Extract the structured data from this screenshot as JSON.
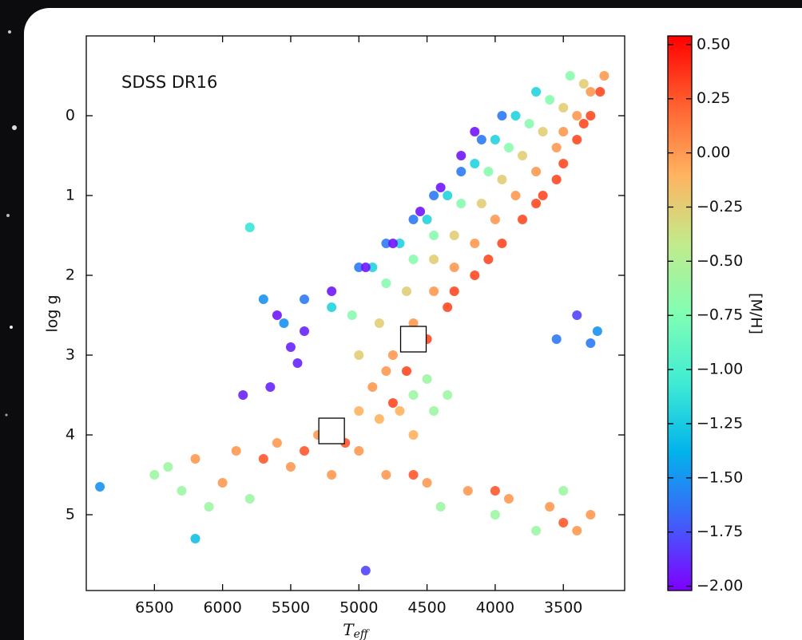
{
  "chart_data": {
    "type": "scatter",
    "annotation": "SDSS DR16",
    "xlabel": {
      "main": "T",
      "sub": "eff"
    },
    "ylabel": "log g",
    "colorbar_label": "[M/H]",
    "xlim": [
      7000,
      3050
    ],
    "ylim": [
      5.95,
      -1.0
    ],
    "xticks": [
      6500,
      6000,
      5500,
      5000,
      4500,
      4000,
      3500
    ],
    "yticks": [
      0,
      1,
      2,
      3,
      4,
      5
    ],
    "clim": [
      -2.02,
      0.54
    ],
    "cticks": [
      {
        "value": 0.5,
        "label": "0.50"
      },
      {
        "value": 0.25,
        "label": "0.25"
      },
      {
        "value": 0.0,
        "label": "0.00"
      },
      {
        "value": -0.25,
        "label": "−0.25"
      },
      {
        "value": -0.5,
        "label": "−0.50"
      },
      {
        "value": -0.75,
        "label": "−0.75"
      },
      {
        "value": -1.0,
        "label": "−1.00"
      },
      {
        "value": -1.25,
        "label": "−1.25"
      },
      {
        "value": -1.5,
        "label": "−1.50"
      },
      {
        "value": -1.75,
        "label": "−1.75"
      },
      {
        "value": -2.0,
        "label": "−2.00"
      }
    ],
    "colormap": [
      "#7f00ff",
      "#3f61fa",
      "#01b3eb",
      "#40ecd4",
      "#81feb4",
      "#c2eb8c",
      "#ffb360",
      "#ff6130",
      "#ff0000"
    ],
    "series": [
      {
        "x": [
          4750,
          4650,
          4500,
          4350,
          4150,
          3950,
          3800,
          3650,
          3500,
          3400,
          3300,
          3230,
          4300,
          4050,
          3700,
          3550,
          3350,
          4900,
          4750,
          4600,
          4450,
          4300,
          4150,
          4000,
          3850,
          3700,
          3550,
          3400,
          3300,
          3200,
          3500,
          4800,
          5000,
          4850,
          4650,
          4450,
          4300,
          4100,
          3950,
          3800,
          3650,
          3500,
          3350,
          5050,
          4800,
          4600,
          4450,
          4250,
          4050,
          3900,
          3750,
          3600,
          3450,
          5200,
          4900,
          4700,
          4500,
          4350,
          4150,
          4000,
          3850,
          3700,
          5400,
          5000,
          4800,
          4600,
          4450,
          4250,
          4100,
          3950,
          5600,
          5200,
          4950,
          4750,
          4550,
          4400,
          4250,
          4150,
          5500,
          5450,
          5850,
          5650,
          5400,
          5700,
          5550,
          6200,
          5900,
          5600,
          5300,
          5000,
          5500,
          6000,
          5200,
          4800,
          4500,
          4200,
          3900,
          3600,
          3400,
          3300,
          5400,
          5100,
          5700,
          4600,
          4000,
          3500,
          6300,
          6100,
          5800,
          4400,
          4000,
          3700,
          3500,
          6400,
          6500,
          4850,
          4700,
          4600,
          5000,
          4500,
          4450,
          4350,
          4600,
          6900,
          5800,
          3400,
          3300,
          3250,
          3550,
          6200,
          4950
        ],
        "values": [
          3.6,
          3.2,
          2.8,
          2.4,
          2.0,
          1.6,
          1.3,
          1.0,
          0.6,
          0.3,
          0.0,
          -0.3,
          2.2,
          1.8,
          1.1,
          0.8,
          0.1,
          3.4,
          3.0,
          2.6,
          2.2,
          1.9,
          1.6,
          1.3,
          1.0,
          0.7,
          0.4,
          0.0,
          -0.3,
          -0.5,
          0.2,
          3.2,
          3.0,
          2.6,
          2.2,
          1.8,
          1.5,
          1.1,
          0.8,
          0.5,
          0.2,
          -0.1,
          -0.4,
          2.5,
          2.1,
          1.8,
          1.5,
          1.1,
          0.7,
          0.4,
          0.1,
          -0.2,
          -0.5,
          2.4,
          1.9,
          1.6,
          1.3,
          1.0,
          0.6,
          0.3,
          0.0,
          -0.3,
          2.3,
          1.9,
          1.6,
          1.3,
          1.0,
          0.7,
          0.3,
          0.0,
          2.5,
          2.2,
          1.9,
          1.6,
          1.2,
          0.9,
          0.5,
          0.2,
          2.9,
          3.1,
          3.5,
          3.4,
          2.7,
          2.3,
          2.6,
          4.3,
          4.2,
          4.1,
          4.0,
          4.2,
          4.4,
          4.6,
          4.5,
          4.5,
          4.6,
          4.7,
          4.8,
          4.9,
          5.2,
          5.0,
          4.2,
          4.1,
          4.3,
          4.5,
          4.7,
          5.1,
          4.7,
          4.9,
          4.8,
          4.9,
          5.0,
          5.2,
          4.7,
          4.4,
          4.5,
          3.8,
          3.7,
          4.0,
          3.7,
          3.3,
          3.7,
          3.5,
          3.5,
          4.65,
          1.4,
          2.5,
          2.85,
          2.7,
          2.8,
          5.3,
          5.7
        ],
        "color_values": [
          0.3,
          0.3,
          0.3,
          0.3,
          0.3,
          0.3,
          0.3,
          0.3,
          0.3,
          0.3,
          0.3,
          0.3,
          0.3,
          0.3,
          0.3,
          0.3,
          0.3,
          0.0,
          0.0,
          0.0,
          0.0,
          0.0,
          0.0,
          0.0,
          0.0,
          0.0,
          0.0,
          0.0,
          0.0,
          0.0,
          0.0,
          0.0,
          -0.25,
          -0.25,
          -0.25,
          -0.25,
          -0.25,
          -0.25,
          -0.25,
          -0.25,
          -0.25,
          -0.25,
          -0.25,
          -0.7,
          -0.7,
          -0.7,
          -0.7,
          -0.7,
          -0.7,
          -0.7,
          -0.7,
          -0.7,
          -0.7,
          -1.2,
          -1.2,
          -1.2,
          -1.2,
          -1.2,
          -1.2,
          -1.2,
          -1.2,
          -1.2,
          -1.6,
          -1.6,
          -1.6,
          -1.6,
          -1.6,
          -1.6,
          -1.6,
          -1.6,
          -1.95,
          -1.95,
          -1.95,
          -1.95,
          -1.95,
          -1.95,
          -1.95,
          -1.95,
          -1.9,
          -1.9,
          -1.9,
          -1.9,
          -1.9,
          -1.5,
          -1.5,
          0.0,
          0.0,
          0.0,
          0.0,
          0.0,
          0.0,
          0.0,
          0.0,
          0.0,
          0.0,
          0.0,
          0.0,
          0.0,
          0.0,
          0.0,
          0.25,
          0.25,
          0.25,
          0.25,
          0.25,
          0.25,
          -0.6,
          -0.6,
          -0.6,
          -0.6,
          -0.6,
          -0.6,
          -0.6,
          -0.6,
          -0.6,
          -0.1,
          -0.1,
          -0.1,
          -0.1,
          -0.6,
          -0.6,
          -0.6,
          -0.6,
          -1.5,
          -1.1,
          -1.8,
          -1.6,
          -1.5,
          -1.6,
          -1.3,
          -1.8
        ]
      }
    ],
    "markers": {
      "x": [
        5200,
        4600
      ],
      "values": [
        3.95,
        2.8
      ]
    }
  }
}
